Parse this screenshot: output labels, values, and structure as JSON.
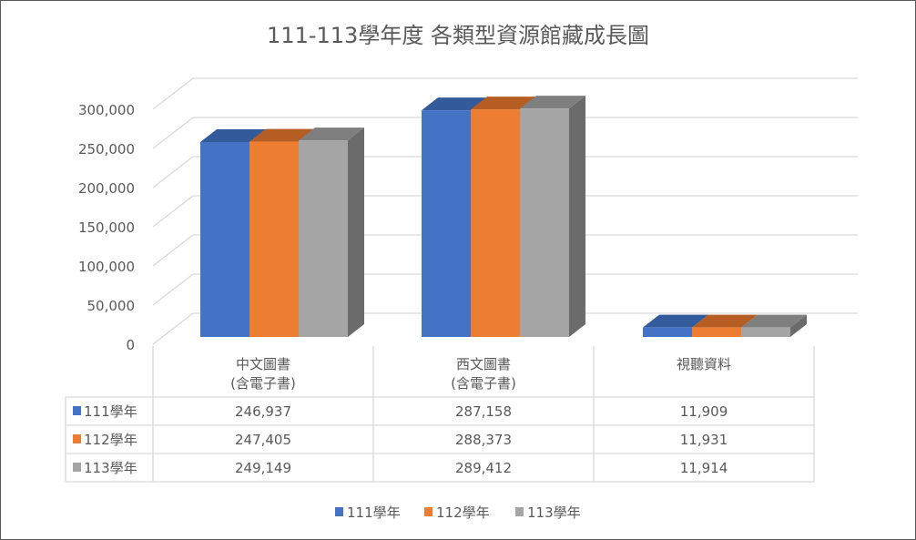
{
  "chart_data": {
    "type": "bar",
    "title": "111-113學年度 各類型資源館藏成長圖",
    "categories": [
      [
        "中文圖書",
        "(含電子書)"
      ],
      [
        "西文圖書",
        "(含電子書)"
      ],
      [
        "視聽資料"
      ]
    ],
    "series": [
      {
        "name": "111學年",
        "color": "#4472C4",
        "top": "#335A9A",
        "side": "#2F5597",
        "values": [
          246937,
          287158,
          11909
        ],
        "labels": [
          "246,937",
          "287,158",
          "11,909"
        ]
      },
      {
        "name": "112學年",
        "color": "#ED7D31",
        "top": "#B55D22",
        "side": "#B55D22",
        "values": [
          247405,
          288373,
          11931
        ],
        "labels": [
          "247,405",
          "288,373",
          "11,931"
        ]
      },
      {
        "name": "113學年",
        "color": "#A5A5A5",
        "top": "#7F7F7F",
        "side": "#6B6B6B",
        "values": [
          249149,
          289412,
          11914
        ],
        "labels": [
          "249,149",
          "289,412",
          "11,914"
        ]
      }
    ],
    "yticks": [
      0,
      50000,
      100000,
      150000,
      200000,
      250000,
      300000
    ],
    "ytick_labels": [
      "0",
      "50,000",
      "100,000",
      "150,000",
      "200,000",
      "250,000",
      "300,000"
    ],
    "ylim": [
      0,
      300000
    ],
    "grid": true,
    "legend": "bottom",
    "data_table": true
  }
}
